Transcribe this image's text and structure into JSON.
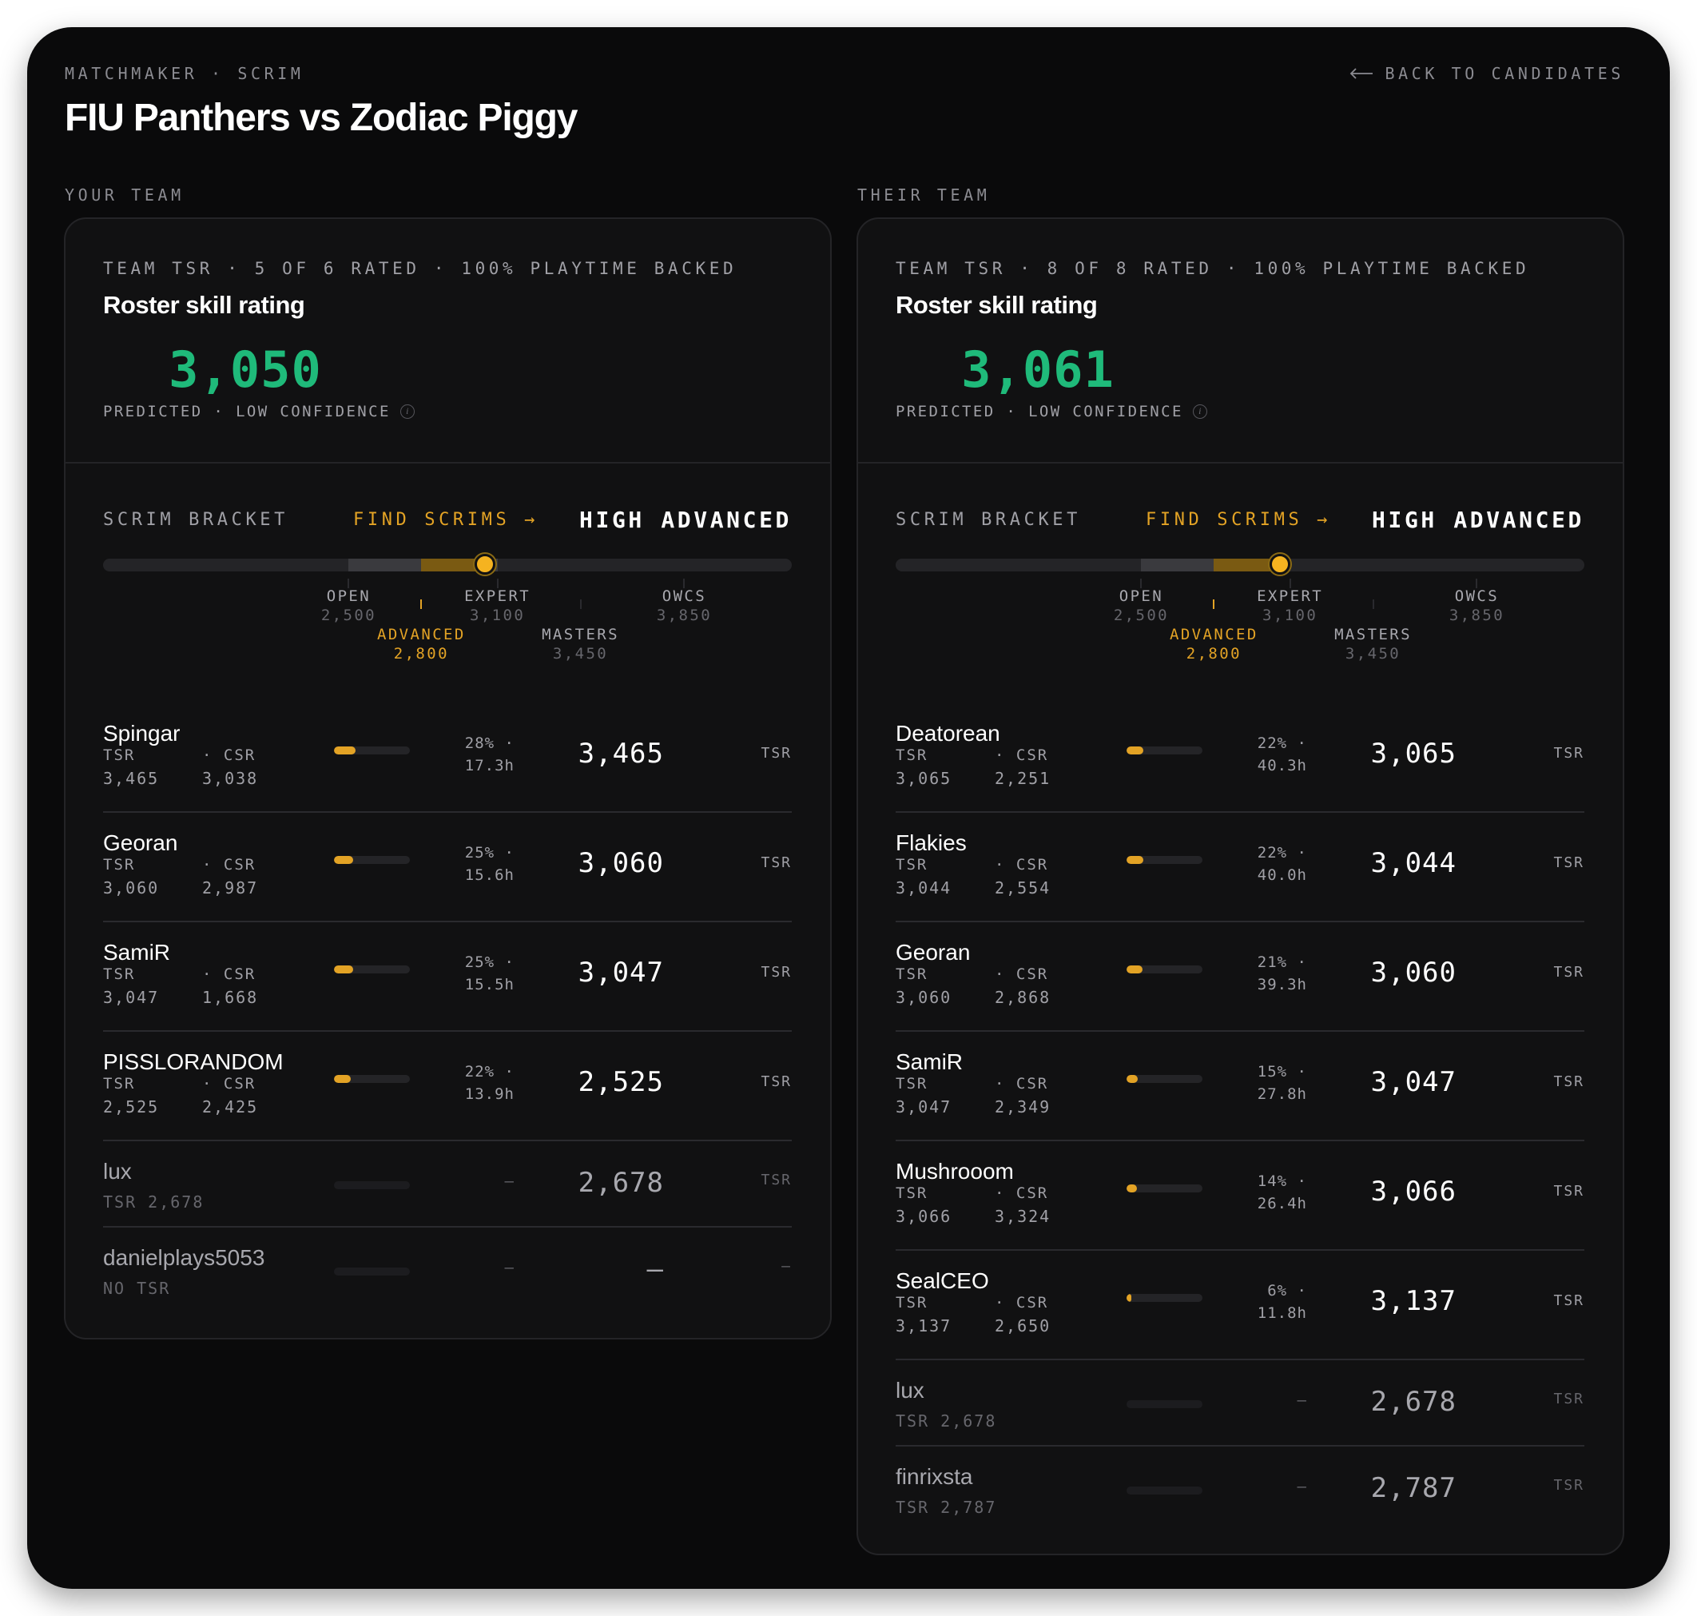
{
  "header": {
    "breadcrumb": "MATCHMAKER · SCRIM",
    "title": "FIU Panthers vs Zodiac Piggy",
    "back_label": "BACK TO CANDIDATES"
  },
  "colors": {
    "accent": "#e3a325",
    "rating": "#1fba7a",
    "background": "#0a0a0b",
    "card": "#111112"
  },
  "your_team": {
    "heading": "YOUR TEAM",
    "meta": "TEAM TSR · 5 OF 6 RATED · 100% PLAYTIME BACKED",
    "subtitle": "Roster skill rating",
    "rating": "3,050",
    "confidence": "PREDICTED · LOW CONFIDENCE",
    "bracket": {
      "label": "SCRIM BRACKET",
      "find": "FIND SCRIMS →",
      "result": "HIGH ADVANCED",
      "position": 3050,
      "range": [
        2500,
        3100
      ],
      "ticks": [
        {
          "name": "OPEN",
          "value": "2,500"
        },
        {
          "name": "ADVANCED",
          "value": "2,800"
        },
        {
          "name": "EXPERT",
          "value": "3,100"
        },
        {
          "name": "MASTERS",
          "value": "3,450"
        },
        {
          "name": "OWCS",
          "value": "3,850"
        }
      ]
    },
    "players": [
      {
        "name": "Spingar",
        "tsr_label": "TSR",
        "csr_label": "· CSR",
        "tsr": "3,465",
        "csr": "3,038",
        "pct": "28% ·",
        "hours": "17.3h",
        "playtime": 0.28,
        "rating": "3,465",
        "unit": "TSR"
      },
      {
        "name": "Georan",
        "tsr_label": "TSR",
        "csr_label": "· CSR",
        "tsr": "3,060",
        "csr": "2,987",
        "pct": "25% ·",
        "hours": "15.6h",
        "playtime": 0.25,
        "rating": "3,060",
        "unit": "TSR"
      },
      {
        "name": "SamiR",
        "tsr_label": "TSR",
        "csr_label": "· CSR",
        "tsr": "3,047",
        "csr": "1,668",
        "pct": "25% ·",
        "hours": "15.5h",
        "playtime": 0.25,
        "rating": "3,047",
        "unit": "TSR"
      },
      {
        "name": "PISSLORANDOM",
        "tsr_label": "TSR",
        "csr_label": "· CSR",
        "tsr": "2,525",
        "csr": "2,425",
        "pct": "22% ·",
        "hours": "13.9h",
        "playtime": 0.22,
        "rating": "2,525",
        "unit": "TSR"
      }
    ],
    "inactive": [
      {
        "name": "lux",
        "sub": "TSR 2,678",
        "stat": "–",
        "rating": "2,678",
        "unit": "TSR"
      },
      {
        "name": "danielplays5053",
        "sub": "NO TSR",
        "stat": "–",
        "rating": "—",
        "unit": "–"
      }
    ]
  },
  "their_team": {
    "heading": "THEIR TEAM",
    "meta": "TEAM TSR · 8 OF 8 RATED · 100% PLAYTIME BACKED",
    "subtitle": "Roster skill rating",
    "rating": "3,061",
    "confidence": "PREDICTED · LOW CONFIDENCE",
    "bracket": {
      "label": "SCRIM BRACKET",
      "find": "FIND SCRIMS →",
      "result": "HIGH ADVANCED",
      "position": 3061,
      "range": [
        2500,
        3100
      ],
      "ticks": [
        {
          "name": "OPEN",
          "value": "2,500"
        },
        {
          "name": "ADVANCED",
          "value": "2,800"
        },
        {
          "name": "EXPERT",
          "value": "3,100"
        },
        {
          "name": "MASTERS",
          "value": "3,450"
        },
        {
          "name": "OWCS",
          "value": "3,850"
        }
      ]
    },
    "players": [
      {
        "name": "Deatorean",
        "tsr_label": "TSR",
        "csr_label": "· CSR",
        "tsr": "3,065",
        "csr": "2,251",
        "pct": "22% ·",
        "hours": "40.3h",
        "playtime": 0.22,
        "rating": "3,065",
        "unit": "TSR"
      },
      {
        "name": "Flakies",
        "tsr_label": "TSR",
        "csr_label": "· CSR",
        "tsr": "3,044",
        "csr": "2,554",
        "pct": "22% ·",
        "hours": "40.0h",
        "playtime": 0.22,
        "rating": "3,044",
        "unit": "TSR"
      },
      {
        "name": "Georan",
        "tsr_label": "TSR",
        "csr_label": "· CSR",
        "tsr": "3,060",
        "csr": "2,868",
        "pct": "21% ·",
        "hours": "39.3h",
        "playtime": 0.21,
        "rating": "3,060",
        "unit": "TSR"
      },
      {
        "name": "SamiR",
        "tsr_label": "TSR",
        "csr_label": "· CSR",
        "tsr": "3,047",
        "csr": "2,349",
        "pct": "15% ·",
        "hours": "27.8h",
        "playtime": 0.15,
        "rating": "3,047",
        "unit": "TSR"
      },
      {
        "name": "Mushrooom",
        "tsr_label": "TSR",
        "csr_label": "· CSR",
        "tsr": "3,066",
        "csr": "3,324",
        "pct": "14% ·",
        "hours": "26.4h",
        "playtime": 0.14,
        "rating": "3,066",
        "unit": "TSR"
      },
      {
        "name": "SealCEO",
        "tsr_label": "TSR",
        "csr_label": "· CSR",
        "tsr": "3,137",
        "csr": "2,650",
        "pct": "6% ·",
        "hours": "11.8h",
        "playtime": 0.06,
        "rating": "3,137",
        "unit": "TSR"
      }
    ],
    "inactive": [
      {
        "name": "lux",
        "sub": "TSR 2,678",
        "stat": "–",
        "rating": "2,678",
        "unit": "TSR"
      },
      {
        "name": "finrixsta",
        "sub": "TSR 2,787",
        "stat": "–",
        "rating": "2,787",
        "unit": "TSR"
      }
    ]
  }
}
